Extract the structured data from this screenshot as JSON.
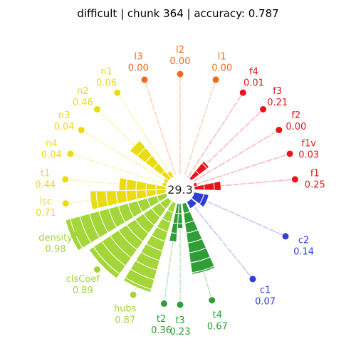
{
  "chart_data": {
    "type": "radial-bar",
    "title": "difficult | chunk 364 | accuracy: 0.787",
    "center_value": "29.3",
    "metrics": [
      {
        "name": "f1",
        "value_label": "0.25",
        "value": 0.25,
        "color": "#e8141a",
        "angle": 5
      },
      {
        "name": "f1v",
        "value_label": "0.03",
        "value": 0.03,
        "color": "#e8141a",
        "angle": 18
      },
      {
        "name": "f2",
        "value_label": "0.00",
        "value": 0.0,
        "color": "#e8141a",
        "angle": 31
      },
      {
        "name": "f3",
        "value_label": "0.21",
        "value": 0.21,
        "color": "#e8141a",
        "angle": 44
      },
      {
        "name": "f4",
        "value_label": "0.01",
        "value": 0.01,
        "color": "#e8141a",
        "angle": 57
      },
      {
        "name": "l1",
        "value_label": "0.00",
        "value": 0.0,
        "color": "#f26a1f",
        "angle": 72
      },
      {
        "name": "l2",
        "value_label": "0.00",
        "value": 0.0,
        "color": "#f26a1f",
        "angle": 90
      },
      {
        "name": "l3",
        "value_label": "0.00",
        "value": 0.0,
        "color": "#f26a1f",
        "angle": 108
      },
      {
        "name": "n1",
        "value_label": "0.06",
        "value": 0.06,
        "color": "#eadc12",
        "angle": 123
      },
      {
        "name": "n2",
        "value_label": "0.46",
        "value": 0.46,
        "color": "#eadc12",
        "angle": 136
      },
      {
        "name": "n3",
        "value_label": "0.04",
        "value": 0.04,
        "color": "#eadc12",
        "angle": 149
      },
      {
        "name": "n4",
        "value_label": "0.04",
        "value": 0.04,
        "color": "#eadc12",
        "angle": 162
      },
      {
        "name": "t1",
        "value_label": "0.44",
        "value": 0.44,
        "color": "#eadc12",
        "angle": 175
      },
      {
        "name": "lsc",
        "value_label": "0.71",
        "value": 0.71,
        "color": "#eadc12",
        "angle": 187
      },
      {
        "name": "density",
        "value_label": "0.98",
        "value": 0.98,
        "color": "#a4d63a",
        "angle": 203
      },
      {
        "name": "clsCoef",
        "value_label": "0.89",
        "value": 0.89,
        "color": "#a4d63a",
        "angle": 224
      },
      {
        "name": "hubs",
        "value_label": "0.87",
        "value": 0.87,
        "color": "#a4d63a",
        "angle": 246
      },
      {
        "name": "t2",
        "value_label": "0.36",
        "value": 0.36,
        "color": "#2f9e37",
        "angle": 262
      },
      {
        "name": "t3",
        "value_label": "0.23",
        "value": 0.23,
        "color": "#2f9e37",
        "angle": 270
      },
      {
        "name": "t4",
        "value_label": "0.67",
        "value": 0.67,
        "color": "#2f9e37",
        "angle": 286
      },
      {
        "name": "c1",
        "value_label": "0.07",
        "value": 0.07,
        "color": "#2f3fd6",
        "angle": 309
      },
      {
        "name": "c2",
        "value_label": "0.14",
        "value": 0.14,
        "color": "#2f3fd6",
        "angle": 336
      }
    ]
  }
}
